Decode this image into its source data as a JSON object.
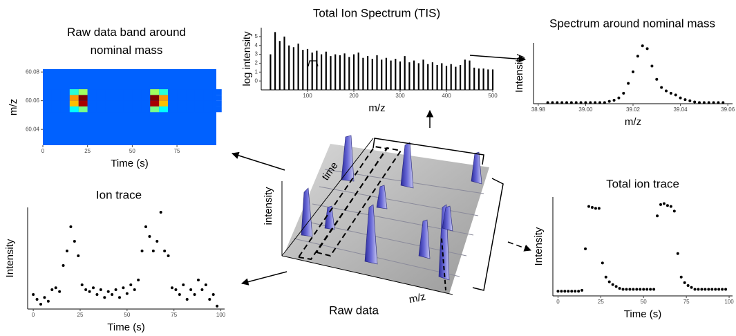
{
  "labels": {
    "intensity": "intensity",
    "time": "time",
    "mz": "m/z",
    "raw_data": "Raw data"
  },
  "chart_data": [
    {
      "type": "heatmap",
      "title": "Raw data band around nominal mass",
      "xlabel": "Time (s)",
      "ylabel": "m/z",
      "colormap": "jet",
      "xlim": [
        0,
        97
      ],
      "ylim": [
        60.029,
        60.082
      ],
      "xticks": [
        0,
        25,
        50,
        75
      ],
      "yticks": [
        60.04,
        60.06,
        60.08
      ],
      "x": [
        0,
        5,
        10,
        15,
        20,
        25,
        30,
        35,
        40,
        45,
        50,
        55,
        60,
        65,
        70,
        75,
        80,
        85,
        90,
        95
      ],
      "y": [
        60.052,
        60.056,
        60.06,
        60.064
      ],
      "z": [
        [
          0,
          0,
          0,
          0.2,
          0.35,
          0,
          0,
          0,
          0,
          0,
          0,
          0,
          0.35,
          0.2,
          0,
          0,
          0,
          0,
          0,
          0
        ],
        [
          0,
          0,
          0,
          0.6,
          0.95,
          0,
          0,
          0,
          0,
          0,
          0,
          0,
          0.95,
          0.6,
          0,
          0,
          0,
          0,
          0,
          0
        ],
        [
          0,
          0,
          0,
          0.65,
          1,
          0,
          0,
          0,
          0,
          0,
          0,
          0,
          1,
          0.65,
          0,
          0,
          0,
          0,
          0,
          0
        ],
        [
          0,
          0,
          0,
          0.25,
          0.4,
          0,
          0,
          0,
          0,
          0,
          0,
          0,
          0.4,
          0.25,
          0,
          0,
          0,
          0,
          0,
          0
        ]
      ]
    },
    {
      "type": "stem",
      "title": "Total Ion Spectrum (TIS)",
      "xlabel": "m/z",
      "ylabel": "log intensity",
      "color": "#000000",
      "xlim": [
        0,
        500
      ],
      "ylim": [
        -1,
        6
      ],
      "xticks": [
        100,
        200,
        300,
        400,
        500
      ],
      "yticks": [
        0,
        1,
        2,
        3,
        4,
        5
      ],
      "x": [
        20,
        30,
        40,
        50,
        60,
        70,
        80,
        90,
        100,
        110,
        120,
        130,
        140,
        150,
        160,
        170,
        180,
        190,
        200,
        210,
        220,
        230,
        240,
        250,
        260,
        270,
        280,
        290,
        300,
        310,
        320,
        330,
        340,
        350,
        360,
        370,
        380,
        390,
        400,
        410,
        420,
        430,
        440,
        450,
        460,
        470,
        480,
        490,
        500
      ],
      "values": [
        3,
        5.5,
        4.5,
        5,
        4,
        3.8,
        4.2,
        3.5,
        3.6,
        3.2,
        3.4,
        3,
        3.3,
        2.8,
        3,
        2.9,
        3.1,
        2.7,
        3,
        3.2,
        2.6,
        2.8,
        2.5,
        2.9,
        2.4,
        2.6,
        2.3,
        2.5,
        2.2,
        2.8,
        2.1,
        2.3,
        2,
        2.4,
        1.9,
        2.1,
        1.8,
        2,
        1.7,
        1.9,
        1.6,
        1.8,
        2.4,
        2.3,
        1.5,
        1.4,
        1.4,
        1.3,
        1.3
      ]
    },
    {
      "type": "scatter",
      "title": "Spectrum around nominal mass",
      "xlabel": "m/z",
      "ylabel": "Intensity",
      "color": "#000000",
      "xlim": [
        38.978,
        39.062
      ],
      "ylim": [
        0,
        1.05
      ],
      "xticks": [
        38.98,
        {
          "value": 39.0,
          "label": "39.00"
        },
        39.02,
        39.04,
        39.06
      ],
      "x": [
        38.984,
        38.986,
        38.988,
        38.99,
        38.992,
        38.994,
        38.996,
        38.998,
        39,
        39.002,
        39.004,
        39.006,
        39.008,
        39.01,
        39.012,
        39.014,
        39.016,
        39.018,
        39.02,
        39.022,
        39.024,
        39.026,
        39.028,
        39.03,
        39.032,
        39.034,
        39.036,
        39.038,
        39.04,
        39.042,
        39.044,
        39.046,
        39.048,
        39.05,
        39.052,
        39.054,
        39.056,
        39.058
      ],
      "values": [
        0.02,
        0.02,
        0.02,
        0.02,
        0.02,
        0.02,
        0.02,
        0.02,
        0.02,
        0.02,
        0.02,
        0.02,
        0.02,
        0.04,
        0.06,
        0.1,
        0.18,
        0.35,
        0.55,
        0.82,
        1,
        0.95,
        0.65,
        0.42,
        0.28,
        0.22,
        0.18,
        0.15,
        0.1,
        0.07,
        0.05,
        0.03,
        0.02,
        0.02,
        0.02,
        0.02,
        0.02,
        0.02
      ]
    },
    {
      "type": "scatter",
      "title": "Ion trace",
      "xlabel": "Time (s)",
      "ylabel": "Intensity",
      "color": "#000000",
      "xlim": [
        -3,
        102
      ],
      "ylim": [
        0,
        1.05
      ],
      "xticks": [
        0,
        25,
        50,
        75,
        100
      ],
      "x": [
        0,
        2,
        4,
        6,
        8,
        10,
        12,
        14,
        16,
        18,
        20,
        22,
        24,
        26,
        28,
        30,
        32,
        34,
        36,
        38,
        40,
        42,
        44,
        46,
        48,
        50,
        52,
        54,
        56,
        58,
        60,
        62,
        64,
        66,
        68,
        70,
        72,
        74,
        76,
        78,
        80,
        82,
        84,
        86,
        88,
        90,
        92,
        94,
        96,
        98
      ],
      "values": [
        0.15,
        0.1,
        0.05,
        0.12,
        0.08,
        0.2,
        0.22,
        0.18,
        0.45,
        0.6,
        0.85,
        0.7,
        0.55,
        0.25,
        0.2,
        0.18,
        0.22,
        0.15,
        0.2,
        0.12,
        0.18,
        0.15,
        0.2,
        0.12,
        0.22,
        0.16,
        0.25,
        0.2,
        0.3,
        0.6,
        0.85,
        0.75,
        0.6,
        0.7,
        1,
        0.6,
        0.55,
        0.22,
        0.2,
        0.15,
        0.25,
        0.1,
        0.2,
        0.15,
        0.3,
        0.2,
        0.25,
        0.1,
        0.15,
        0.03
      ]
    },
    {
      "type": "scatter",
      "title": "Total ion trace",
      "xlabel": "Time (s)",
      "ylabel": "Intensity",
      "color": "#000000",
      "xlim": [
        -3,
        102
      ],
      "ylim": [
        0,
        1.05
      ],
      "xticks": [
        0,
        25,
        50,
        75,
        100
      ],
      "x": [
        0,
        2,
        4,
        6,
        8,
        10,
        12,
        14,
        16,
        18,
        20,
        22,
        24,
        26,
        28,
        30,
        32,
        34,
        36,
        38,
        40,
        42,
        44,
        46,
        48,
        50,
        52,
        54,
        56,
        58,
        60,
        62,
        64,
        66,
        68,
        70,
        72,
        74,
        76,
        78,
        80,
        82,
        84,
        86,
        88,
        90,
        92,
        94,
        96,
        98
      ],
      "values": [
        0.05,
        0.05,
        0.05,
        0.05,
        0.05,
        0.05,
        0.05,
        0.06,
        0.5,
        0.95,
        0.94,
        0.93,
        0.93,
        0.35,
        0.2,
        0.15,
        0.12,
        0.1,
        0.08,
        0.07,
        0.07,
        0.07,
        0.07,
        0.07,
        0.07,
        0.07,
        0.07,
        0.07,
        0.07,
        0.85,
        0.97,
        0.98,
        0.96,
        0.95,
        0.9,
        0.45,
        0.2,
        0.14,
        0.11,
        0.09,
        0.07,
        0.07,
        0.07,
        0.07,
        0.07,
        0.07,
        0.07,
        0.07,
        0.07,
        0.07
      ]
    }
  ]
}
